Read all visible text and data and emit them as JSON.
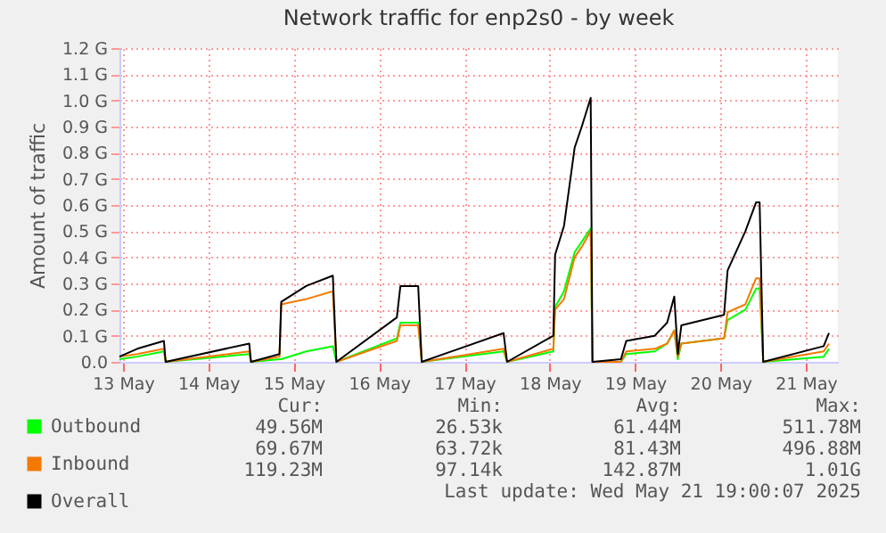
{
  "chart_data": {
    "type": "line",
    "title": "Network traffic for enp2s0 - by week",
    "ylabel": "Amount of traffic",
    "x": [
      "--05-13T11:00",
      "--05-13T16:00",
      "--05-13T23:30",
      "--05-14T00:00",
      "--05-14T23:30",
      "--05-15T00:00",
      "--05-15T08:00",
      "--05-15T08:30",
      "--05-15T15:30",
      "--05-15T23:00",
      "--05-16T00:00",
      "--05-16T17:00",
      "--05-16T18:00",
      "--05-16T23:00",
      "--05-17T00:00",
      "--05-17T23:00",
      "--05-18T00:00",
      "--05-18T13:00",
      "--05-18T13:30",
      "--05-18T16:00",
      "--05-18T19:00",
      "--05-18T21:00",
      "--05-18T23:30",
      "--05-19T00:00",
      "--05-19T08:00",
      "--05-19T09:30",
      "--05-19T17:30",
      "--05-19T21:00",
      "--05-19T23:00",
      "--05-20T00:00",
      "--05-20T01:00",
      "--05-20T13:00",
      "--05-20T14:00",
      "--05-20T19:00",
      "--05-20T22:00",
      "--05-20T23:00",
      "--05-21T00:00",
      "--05-21T17:00",
      "--05-21T18:30"
    ],
    "series": [
      {
        "name": "Outbound",
        "color": "#00ff00",
        "values": [
          0.01,
          0.02,
          0.04,
          0,
          0.03,
          0,
          0.01,
          0.01,
          0.04,
          0.06,
          0,
          0.09,
          0.15,
          0.15,
          0,
          0.04,
          0,
          0.04,
          0.21,
          0.27,
          0.42,
          0.46,
          0.51,
          0,
          0,
          0.03,
          0.04,
          0.07,
          0.12,
          0.01,
          0.07,
          0.09,
          0.16,
          0.2,
          0.28,
          0.28,
          0,
          0.02,
          0.05
        ]
      },
      {
        "name": "Inbound",
        "color": "#f57900",
        "values": [
          0.02,
          0.03,
          0.05,
          0,
          0.04,
          0,
          0.02,
          0.22,
          0.24,
          0.27,
          0,
          0.08,
          0.14,
          0.14,
          0,
          0.05,
          0,
          0.05,
          0.2,
          0.24,
          0.4,
          0.44,
          0.5,
          0,
          0,
          0.04,
          0.05,
          0.07,
          0.12,
          0.02,
          0.07,
          0.09,
          0.19,
          0.22,
          0.32,
          0.32,
          0,
          0.04,
          0.07
        ]
      },
      {
        "name": "Overall",
        "color": "#000000",
        "values": [
          0.02,
          0.05,
          0.08,
          0,
          0.07,
          0,
          0.03,
          0.23,
          0.29,
          0.33,
          0,
          0.17,
          0.29,
          0.29,
          0,
          0.11,
          0,
          0.1,
          0.41,
          0.52,
          0.82,
          0.9,
          1.01,
          0,
          0.01,
          0.08,
          0.1,
          0.15,
          0.25,
          0.03,
          0.14,
          0.18,
          0.35,
          0.5,
          0.61,
          0.61,
          0,
          0.06,
          0.11
        ]
      }
    ],
    "xlim": [
      "--05-13T11:00",
      "--05-21T21:00"
    ],
    "xticks": [
      {
        "value": "--05-13T12:00",
        "label": "13 May"
      },
      {
        "value": "--05-14T12:00",
        "label": "14 May"
      },
      {
        "value": "--05-15T12:00",
        "label": "15 May"
      },
      {
        "value": "--05-16T12:00",
        "label": "16 May"
      },
      {
        "value": "--05-17T12:00",
        "label": "17 May"
      },
      {
        "value": "--05-18T12:00",
        "label": "18 May"
      },
      {
        "value": "--05-19T12:00",
        "label": "19 May"
      },
      {
        "value": "--05-20T12:00",
        "label": "20 May"
      },
      {
        "value": "--05-21T12:00",
        "label": "21 May"
      }
    ],
    "ylim": [
      0,
      1.2
    ],
    "yticks": [
      {
        "value": 0,
        "label": "0.0"
      },
      {
        "value": 0.1,
        "label": "0.1 G"
      },
      {
        "value": 0.2,
        "label": "0.2 G"
      },
      {
        "value": 0.3,
        "label": "0.3 G"
      },
      {
        "value": 0.4,
        "label": "0.4 G"
      },
      {
        "value": 0.5,
        "label": "0.5 G"
      },
      {
        "value": 0.6,
        "label": "0.6 G"
      },
      {
        "value": 0.7,
        "label": "0.7 G"
      },
      {
        "value": 0.8,
        "label": "0.8 G"
      },
      {
        "value": 0.9,
        "label": "0.9 G"
      },
      {
        "value": 1.0,
        "label": "1.0 G"
      },
      {
        "value": 1.1,
        "label": "1.1 G"
      },
      {
        "value": 1.2,
        "label": "1.2 G"
      }
    ],
    "grid": true,
    "legend": "bottom left",
    "marker": "none",
    "line_style": "solid",
    "annotations": [
      "Cur:",
      "Min:",
      "Avg:",
      "Max:",
      "49.56M",
      "26.53k",
      "61.44M",
      "511.78M",
      "69.67M",
      "63.72k",
      "81.43M",
      "496.88M",
      "119.23M",
      "97.14k",
      "142.87M",
      "1.01G",
      "Last update: Wed May 21 19:00:07 2025"
    ]
  }
}
